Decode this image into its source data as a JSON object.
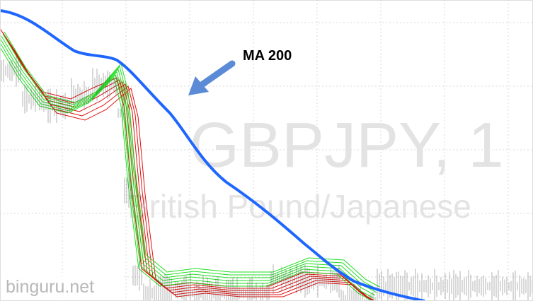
{
  "annotation": {
    "label": "MA 200"
  },
  "watermark": {
    "symbol": "GBPJPY, 1",
    "description": "British Pound/Japanese"
  },
  "site": {
    "label": "binguru.net"
  }
}
